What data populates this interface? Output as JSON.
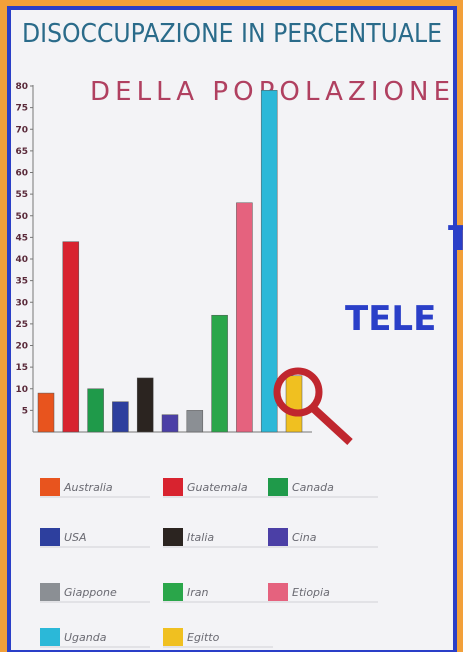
{
  "chart_data": {
    "type": "bar",
    "title": "DISOCCUPAZIONE IN PERCENTUALE",
    "subtitle": "DELLA POPOLAZIONE",
    "categories": [
      "Australia",
      "Guatemala",
      "Canada",
      "USA",
      "Italia",
      "Cina",
      "Giappone",
      "Iran",
      "Etiopia",
      "Uganda",
      "Egitto"
    ],
    "values": [
      9,
      44,
      10,
      7,
      12.5,
      4,
      5,
      27,
      53,
      79,
      13
    ],
    "colors": [
      "#e8541e",
      "#d8232f",
      "#1f9a4a",
      "#2d3f9e",
      "#2b2420",
      "#4b3fa6",
      "#8b8f94",
      "#2aa64a",
      "#e5627e",
      "#2bb8d8",
      "#f0c020"
    ],
    "ylim": [
      0,
      80
    ],
    "yticks": [
      5,
      10,
      15,
      20,
      25,
      30,
      35,
      40,
      45,
      50,
      55,
      60,
      65,
      70,
      75,
      80
    ],
    "grid": false,
    "annotations": [
      "T",
      "TELE"
    ]
  }
}
